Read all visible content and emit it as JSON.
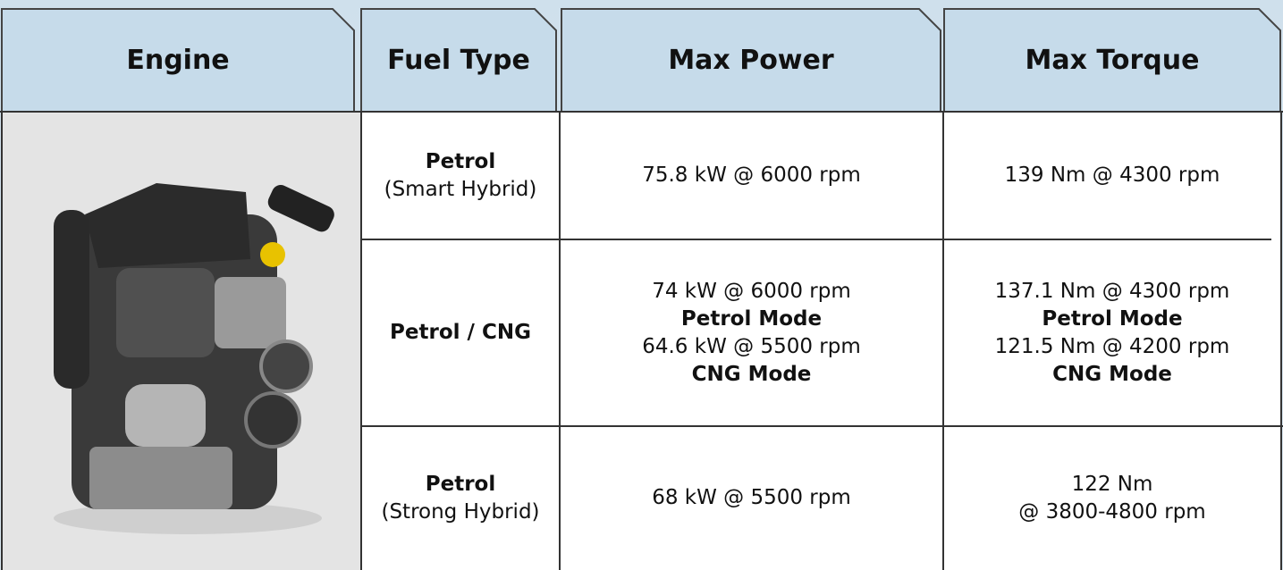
{
  "table": {
    "headers": [
      "Engine",
      "Fuel Type",
      "Max Power",
      "Max Torque"
    ],
    "rows": [
      {
        "fuel": [
          {
            "text": "Petrol",
            "bold": true
          },
          {
            "text": "(Smart Hybrid)",
            "bold": false
          }
        ],
        "power": [
          {
            "text": "75.8 kW @ 6000 rpm",
            "bold": false
          }
        ],
        "torque": [
          {
            "text": "139 Nm @ 4300 rpm",
            "bold": false
          }
        ]
      },
      {
        "fuel": [
          {
            "text": "Petrol / CNG",
            "bold": true
          }
        ],
        "power": [
          {
            "text": "74 kW @ 6000 rpm",
            "bold": false
          },
          {
            "text": "Petrol Mode",
            "bold": true
          },
          {
            "text": "64.6 kW @ 5500 rpm",
            "bold": false
          },
          {
            "text": "CNG Mode",
            "bold": true
          }
        ],
        "torque": [
          {
            "text": "137.1 Nm @ 4300 rpm",
            "bold": false
          },
          {
            "text": "Petrol Mode",
            "bold": true
          },
          {
            "text": "121.5 Nm @ 4200 rpm",
            "bold": false
          },
          {
            "text": "CNG Mode",
            "bold": true
          }
        ]
      },
      {
        "fuel": [
          {
            "text": "Petrol",
            "bold": true
          },
          {
            "text": "(Strong Hybrid)",
            "bold": false
          }
        ],
        "power": [
          {
            "text": "68 kW @ 5500 rpm",
            "bold": false
          }
        ],
        "torque": [
          {
            "text": "122 Nm",
            "bold": false
          },
          {
            "text": "@ 3800-4800 rpm",
            "bold": false
          }
        ]
      }
    ]
  }
}
